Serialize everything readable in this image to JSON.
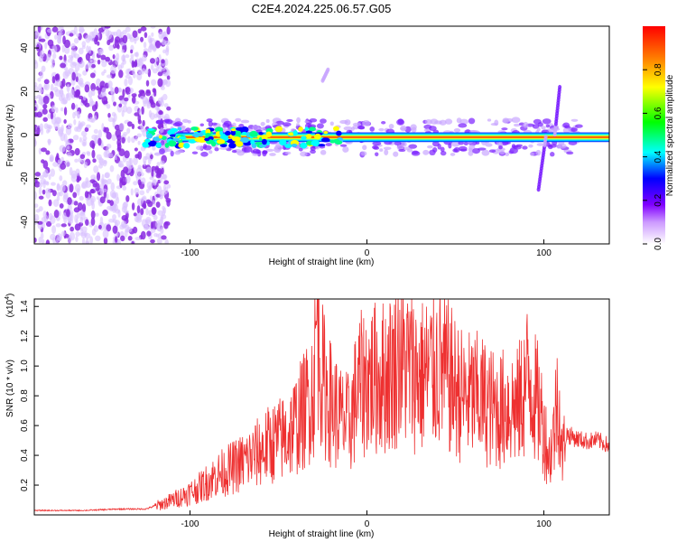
{
  "figure_title": "C2E4.2024.225.06.57.G05",
  "chart_data": [
    {
      "type": "heatmap",
      "title": "C2E4.2024.225.06.57.G05",
      "xlabel": "Height of straight line (km)",
      "ylabel": "Frequency (Hz)",
      "xlim": [
        -188,
        137
      ],
      "ylim": [
        -50,
        50
      ],
      "x_ticks": [
        -100,
        0,
        100
      ],
      "x_tick_labels": [
        "-100",
        "0",
        "100"
      ],
      "y_ticks": [
        -40,
        -20,
        0,
        20,
        40
      ],
      "y_tick_labels": [
        "-40",
        "-20",
        "0",
        "20",
        "40"
      ],
      "colorbar": {
        "label": "Normalized spectral amplitude",
        "range": [
          0,
          1
        ],
        "ticks": [
          0.0,
          0.2,
          0.4,
          0.6,
          0.8
        ],
        "tick_labels": [
          "0.0",
          "0.2",
          "0.4",
          "0.6",
          "0.8"
        ],
        "colors": [
          "#ffffff",
          "#cc99ff",
          "#8000ff",
          "#0000ff",
          "#00ffff",
          "#00ff00",
          "#ffff00",
          "#ff8000",
          "#ff0000"
        ]
      },
      "features": [
        {
          "region": "noise",
          "x_range": [
            -188,
            -118
          ],
          "f_range": [
            -50,
            50
          ],
          "amplitude": 0.15
        },
        {
          "region": "carrier",
          "x_range": [
            -118,
            137
          ],
          "f_center": -1,
          "amplitude": 0.95
        },
        {
          "region": "glint",
          "x_range": [
            95,
            110
          ],
          "f_range": [
            -25,
            22
          ],
          "amplitude": 0.3
        },
        {
          "region": "glint",
          "x_range": [
            -25,
            -22
          ],
          "f_range": [
            25,
            30
          ],
          "amplitude": 0.2
        }
      ],
      "grid": false
    },
    {
      "type": "line",
      "xlabel": "Height of straight line (km)",
      "ylabel": "SNR (10 * v/v)",
      "y_multiplier_label": "(x10",
      "y_multiplier_exp": "4",
      "y_multiplier_close": ")",
      "xlim": [
        -188,
        137
      ],
      "ylim": [
        0,
        14500
      ],
      "x_ticks": [
        -100,
        0,
        100
      ],
      "x_tick_labels": [
        "-100",
        "0",
        "100"
      ],
      "y_ticks": [
        2000,
        4000,
        6000,
        8000,
        10000,
        12000,
        14000
      ],
      "y_tick_labels": [
        "0.2",
        "0.4",
        "0.6",
        "0.8",
        "1.0",
        "1.2",
        "1.4"
      ],
      "color": "#ee3030",
      "series": [
        {
          "x": [
            -188,
            -160,
            -140,
            -125,
            -115,
            -105,
            -95,
            -85,
            -75,
            -65,
            -55,
            -45,
            -40,
            -35,
            -30,
            -28,
            -25,
            -20,
            -15,
            -10,
            -5,
            0,
            5,
            10,
            15,
            18,
            20,
            25,
            30,
            35,
            40,
            45,
            50,
            55,
            60,
            65,
            70,
            75,
            80,
            85,
            88,
            90,
            92,
            95,
            98,
            100,
            103,
            106,
            108,
            110,
            113,
            118,
            125,
            130,
            137
          ],
          "y": [
            300,
            300,
            400,
            400,
            800,
            1300,
            1900,
            2800,
            3400,
            4100,
            5000,
            5600,
            6500,
            7500,
            9200,
            14400,
            9500,
            7800,
            6800,
            6400,
            9000,
            9600,
            9700,
            9800,
            10300,
            11500,
            10800,
            10400,
            9800,
            10100,
            10600,
            9900,
            9000,
            8300,
            8400,
            8200,
            7600,
            7400,
            7800,
            7600,
            8500,
            9500,
            9800,
            8300,
            7400,
            6200,
            4000,
            6000,
            9500,
            4200,
            5500,
            5200,
            5000,
            5100,
            4700
          ]
        }
      ]
    }
  ]
}
